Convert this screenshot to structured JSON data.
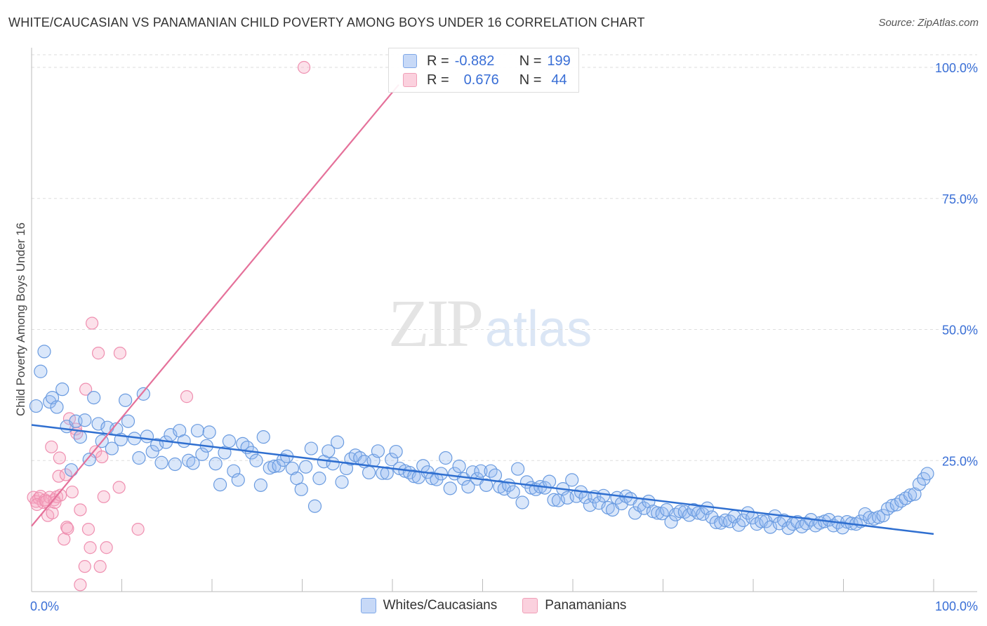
{
  "title": "WHITE/CAUCASIAN VS PANAMANIAN CHILD POVERTY AMONG BOYS UNDER 16 CORRELATION CHART",
  "source": "Source: ZipAtlas.com",
  "watermark": {
    "zip": "ZIP",
    "atlas": "atlas"
  },
  "legend": {
    "rows": [
      {
        "r_label": "R =",
        "r_value": "-0.882",
        "n_label": "N =",
        "n_value": "199",
        "color": "#7fa8e8",
        "fill": "#c7d9f7"
      },
      {
        "r_label": "R =",
        "r_value": "0.676",
        "n_label": "N =",
        "n_value": "44",
        "color": "#f0a0b8",
        "fill": "#fbd1de"
      }
    ]
  },
  "bottom_legend": [
    "Whites/Caucasians",
    "Panamanians"
  ],
  "chart_data": {
    "type": "scatter",
    "title": "WHITE/CAUCASIAN VS PANAMANIAN CHILD POVERTY AMONG BOYS UNDER 16 CORRELATION CHART",
    "xlabel": "",
    "ylabel": "Child Poverty Among Boys Under 16",
    "xlim": [
      0,
      100
    ],
    "ylim": [
      0,
      100
    ],
    "x_tick_labels": [
      "0.0%",
      "100.0%"
    ],
    "y_tick_labels": [
      "25.0%",
      "50.0%",
      "75.0%",
      "100.0%"
    ],
    "y_ticks": [
      25,
      50,
      75,
      100
    ],
    "grid": true,
    "colors": {
      "white": "#6a9be0",
      "white_fill": "rgba(150,185,240,0.35)",
      "white_line": "#2f6fd0",
      "pan": "#ef8fb0",
      "pan_fill": "rgba(246,170,195,0.35)",
      "pan_line": "#e5719a",
      "axis_text": "#3a6fd6"
    },
    "series": [
      {
        "name": "Whites/Caucasians",
        "trend": {
          "x": [
            0,
            100
          ],
          "y": [
            31.8,
            11.0
          ]
        },
        "points": [
          [
            0.5,
            35.4
          ],
          [
            1.0,
            42.0
          ],
          [
            1.4,
            45.8
          ],
          [
            2.0,
            36.2
          ],
          [
            2.3,
            37.0
          ],
          [
            2.8,
            35.2
          ],
          [
            3.4,
            38.6
          ],
          [
            3.9,
            31.5
          ],
          [
            4.4,
            23.2
          ],
          [
            4.9,
            32.5
          ],
          [
            5.4,
            29.5
          ],
          [
            5.9,
            32.7
          ],
          [
            6.4,
            25.2
          ],
          [
            6.9,
            37.0
          ],
          [
            7.4,
            32.0
          ],
          [
            7.8,
            28.7
          ],
          [
            8.4,
            31.3
          ],
          [
            8.9,
            27.3
          ],
          [
            9.4,
            31.0
          ],
          [
            9.9,
            29.0
          ],
          [
            10.4,
            36.5
          ],
          [
            10.7,
            32.5
          ],
          [
            11.4,
            29.2
          ],
          [
            11.9,
            25.5
          ],
          [
            12.4,
            37.7
          ],
          [
            12.8,
            29.6
          ],
          [
            13.4,
            26.7
          ],
          [
            13.9,
            28.0
          ],
          [
            14.4,
            24.6
          ],
          [
            14.9,
            28.5
          ],
          [
            15.4,
            29.9
          ],
          [
            15.9,
            24.3
          ],
          [
            16.4,
            30.7
          ],
          [
            16.9,
            28.7
          ],
          [
            17.4,
            25.0
          ],
          [
            17.9,
            24.5
          ],
          [
            18.4,
            30.7
          ],
          [
            18.9,
            26.2
          ],
          [
            19.4,
            27.8
          ],
          [
            19.7,
            30.4
          ],
          [
            20.4,
            24.4
          ],
          [
            20.9,
            20.4
          ],
          [
            21.4,
            26.5
          ],
          [
            21.9,
            28.7
          ],
          [
            22.4,
            23.0
          ],
          [
            22.9,
            21.3
          ],
          [
            23.4,
            28.2
          ],
          [
            23.9,
            27.5
          ],
          [
            24.4,
            26.5
          ],
          [
            24.9,
            25.0
          ],
          [
            25.4,
            20.3
          ],
          [
            25.7,
            29.5
          ],
          [
            26.4,
            23.6
          ],
          [
            26.9,
            23.9
          ],
          [
            27.4,
            24.0
          ],
          [
            27.9,
            25.1
          ],
          [
            28.3,
            25.8
          ],
          [
            28.9,
            23.5
          ],
          [
            29.4,
            21.6
          ],
          [
            29.9,
            19.5
          ],
          [
            30.4,
            23.8
          ],
          [
            31.0,
            27.3
          ],
          [
            31.4,
            16.3
          ],
          [
            31.9,
            21.6
          ],
          [
            32.4,
            24.8
          ],
          [
            32.9,
            26.8
          ],
          [
            33.4,
            24.4
          ],
          [
            33.9,
            28.5
          ],
          [
            34.4,
            20.9
          ],
          [
            34.9,
            23.5
          ],
          [
            35.4,
            25.3
          ],
          [
            35.9,
            26.0
          ],
          [
            36.4,
            25.5
          ],
          [
            36.9,
            24.8
          ],
          [
            37.4,
            22.7
          ],
          [
            37.9,
            25.0
          ],
          [
            38.4,
            26.8
          ],
          [
            38.9,
            22.6
          ],
          [
            39.4,
            22.6
          ],
          [
            39.9,
            25.2
          ],
          [
            40.4,
            26.7
          ],
          [
            40.8,
            23.5
          ],
          [
            41.4,
            23.0
          ],
          [
            41.9,
            22.7
          ],
          [
            42.4,
            22.0
          ],
          [
            42.9,
            21.8
          ],
          [
            43.4,
            24.0
          ],
          [
            43.9,
            22.8
          ],
          [
            44.4,
            21.6
          ],
          [
            44.9,
            21.4
          ],
          [
            45.4,
            22.5
          ],
          [
            45.9,
            25.5
          ],
          [
            46.4,
            19.7
          ],
          [
            46.9,
            22.5
          ],
          [
            47.4,
            23.9
          ],
          [
            47.9,
            21.5
          ],
          [
            48.4,
            20.0
          ],
          [
            48.9,
            22.8
          ],
          [
            49.4,
            21.5
          ],
          [
            49.8,
            23.0
          ],
          [
            50.4,
            20.3
          ],
          [
            50.9,
            23.0
          ],
          [
            51.4,
            22.2
          ],
          [
            51.9,
            20.0
          ],
          [
            52.4,
            19.6
          ],
          [
            52.9,
            20.3
          ],
          [
            53.4,
            19.0
          ],
          [
            53.9,
            23.4
          ],
          [
            54.4,
            17.0
          ],
          [
            54.9,
            20.9
          ],
          [
            55.4,
            19.8
          ],
          [
            55.9,
            19.5
          ],
          [
            56.4,
            20.0
          ],
          [
            56.9,
            19.8
          ],
          [
            57.4,
            21.0
          ],
          [
            57.9,
            17.5
          ],
          [
            58.4,
            17.4
          ],
          [
            58.9,
            19.6
          ],
          [
            59.4,
            17.9
          ],
          [
            59.9,
            21.3
          ],
          [
            60.4,
            18.2
          ],
          [
            60.9,
            19.0
          ],
          [
            61.4,
            18.0
          ],
          [
            61.9,
            16.5
          ],
          [
            62.4,
            18.1
          ],
          [
            62.9,
            16.9
          ],
          [
            63.4,
            18.3
          ],
          [
            63.9,
            16.0
          ],
          [
            64.4,
            15.6
          ],
          [
            64.9,
            17.9
          ],
          [
            65.4,
            16.8
          ],
          [
            65.9,
            18.2
          ],
          [
            66.4,
            17.7
          ],
          [
            66.9,
            15.0
          ],
          [
            67.4,
            16.5
          ],
          [
            67.9,
            15.9
          ],
          [
            68.4,
            17.2
          ],
          [
            68.9,
            15.3
          ],
          [
            69.4,
            15.0
          ],
          [
            69.9,
            14.9
          ],
          [
            70.4,
            15.6
          ],
          [
            70.9,
            13.3
          ],
          [
            71.4,
            14.7
          ],
          [
            71.9,
            15.3
          ],
          [
            72.4,
            15.2
          ],
          [
            72.9,
            14.6
          ],
          [
            73.4,
            15.6
          ],
          [
            73.9,
            15.0
          ],
          [
            74.4,
            14.8
          ],
          [
            74.9,
            15.9
          ],
          [
            75.4,
            14.2
          ],
          [
            75.9,
            13.2
          ],
          [
            76.4,
            13.1
          ],
          [
            76.9,
            13.6
          ],
          [
            77.4,
            13.4
          ],
          [
            77.9,
            14.3
          ],
          [
            78.4,
            12.7
          ],
          [
            78.9,
            13.6
          ],
          [
            79.4,
            15.0
          ],
          [
            79.9,
            14.1
          ],
          [
            80.4,
            12.9
          ],
          [
            80.9,
            13.4
          ],
          [
            81.4,
            13.4
          ],
          [
            81.9,
            12.3
          ],
          [
            82.4,
            14.4
          ],
          [
            82.9,
            13.0
          ],
          [
            83.4,
            13.6
          ],
          [
            83.9,
            12.1
          ],
          [
            84.4,
            12.9
          ],
          [
            84.9,
            13.3
          ],
          [
            85.4,
            12.4
          ],
          [
            85.9,
            13.0
          ],
          [
            86.4,
            13.7
          ],
          [
            86.9,
            12.6
          ],
          [
            87.4,
            13.1
          ],
          [
            87.9,
            13.4
          ],
          [
            88.4,
            13.7
          ],
          [
            88.9,
            12.6
          ],
          [
            89.4,
            13.2
          ],
          [
            89.9,
            12.2
          ],
          [
            90.4,
            13.3
          ],
          [
            90.9,
            13.0
          ],
          [
            91.4,
            12.9
          ],
          [
            91.9,
            13.4
          ],
          [
            92.4,
            14.8
          ],
          [
            92.9,
            14.1
          ],
          [
            93.4,
            13.9
          ],
          [
            93.9,
            14.2
          ],
          [
            94.4,
            14.5
          ],
          [
            94.9,
            15.8
          ],
          [
            95.4,
            16.4
          ],
          [
            95.9,
            16.6
          ],
          [
            96.4,
            17.3
          ],
          [
            96.9,
            17.8
          ],
          [
            97.4,
            18.4
          ],
          [
            97.9,
            18.6
          ],
          [
            98.4,
            20.5
          ],
          [
            98.9,
            21.5
          ],
          [
            99.3,
            22.5
          ]
        ]
      },
      {
        "name": "Panamanians",
        "trend": {
          "x": [
            0,
            40.7
          ],
          "y": [
            12.5,
            96.7
          ]
        },
        "points": [
          [
            0.2,
            18.0
          ],
          [
            0.5,
            17.2
          ],
          [
            0.8,
            17.8
          ],
          [
            1.0,
            18.2
          ],
          [
            1.3,
            17.0
          ],
          [
            1.5,
            17.5
          ],
          [
            1.8,
            14.5
          ],
          [
            2.0,
            18.0
          ],
          [
            2.3,
            15.0
          ],
          [
            2.5,
            17.5
          ],
          [
            2.8,
            18.1
          ],
          [
            3.0,
            22.0
          ],
          [
            3.1,
            25.5
          ],
          [
            3.2,
            18.4
          ],
          [
            3.6,
            10.0
          ],
          [
            3.8,
            22.3
          ],
          [
            3.9,
            12.3
          ],
          [
            4.0,
            12.0
          ],
          [
            4.2,
            33.0
          ],
          [
            4.5,
            19.0
          ],
          [
            4.9,
            31.0
          ],
          [
            5.0,
            30.2
          ],
          [
            5.4,
            15.6
          ],
          [
            5.9,
            4.8
          ],
          [
            5.4,
            1.3
          ],
          [
            6.0,
            38.6
          ],
          [
            6.3,
            11.9
          ],
          [
            6.5,
            8.4
          ],
          [
            6.7,
            51.2
          ],
          [
            7.1,
            26.7
          ],
          [
            7.4,
            45.5
          ],
          [
            7.6,
            4.8
          ],
          [
            7.8,
            25.7
          ],
          [
            8.0,
            18.1
          ],
          [
            8.3,
            8.4
          ],
          [
            9.8,
            45.5
          ],
          [
            9.7,
            19.9
          ],
          [
            11.8,
            11.9
          ],
          [
            17.2,
            37.2
          ],
          [
            30.2,
            100.0
          ],
          [
            2.2,
            27.6
          ],
          [
            0.6,
            16.6
          ],
          [
            1.6,
            17.2
          ],
          [
            2.6,
            17.0
          ]
        ]
      }
    ]
  }
}
